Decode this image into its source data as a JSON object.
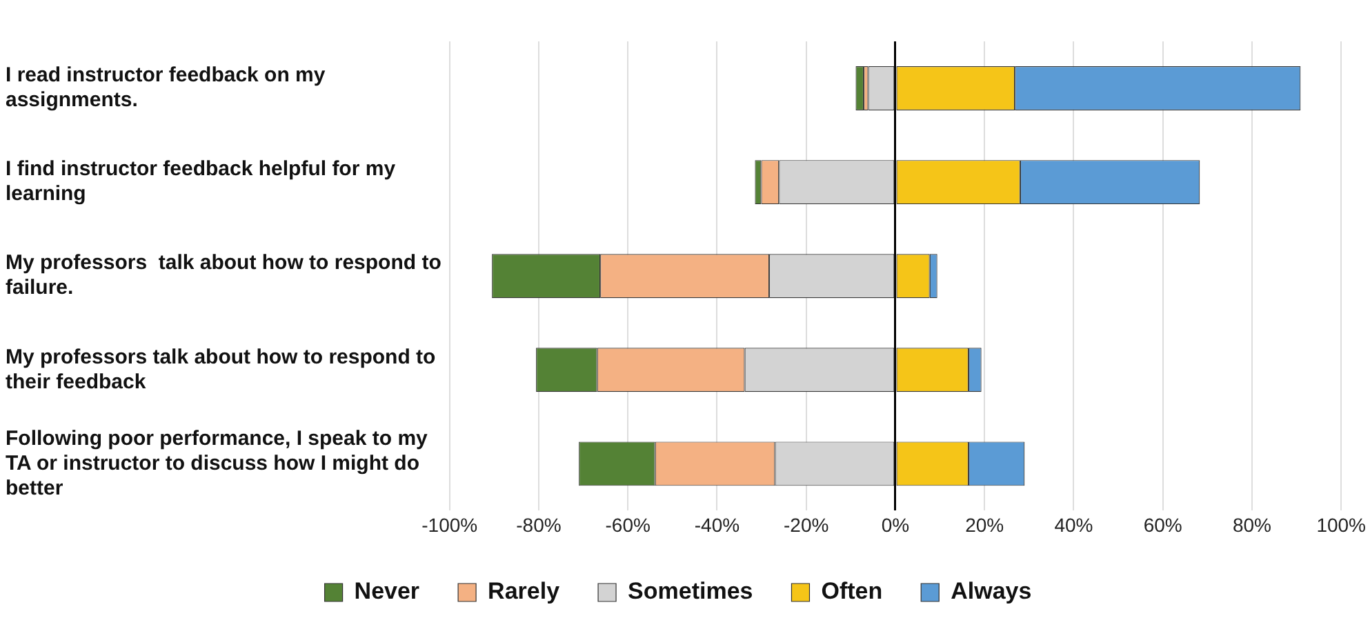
{
  "chart_data": {
    "type": "bar",
    "orientation": "horizontal",
    "stacked": true,
    "categories": [
      "I read instructor feedback on my assignments.",
      "I find instructor feedback helpful for my learning",
      "My professors  talk about how to respond to failure.",
      "My professors talk about how to respond to their feedback",
      "Following poor performance, I speak to my TA or instructor to discuss how I might do better"
    ],
    "series": [
      {
        "name": "Never",
        "color": "#548235",
        "values": [
          -1.8,
          -1.4,
          -24.3,
          -13.7,
          -17.1
        ]
      },
      {
        "name": "Rarely",
        "color": "#f4b183",
        "values": [
          -1,
          -4,
          -37.9,
          -33.1,
          -26.9
        ]
      },
      {
        "name": "Sometimes",
        "color": "#d3d3d3",
        "values": [
          -6.1,
          -26.1,
          -28.3,
          -33.8,
          -27
        ]
      },
      {
        "name": "Often",
        "color": "#f5c518",
        "values": [
          26.8,
          28,
          7.7,
          16.4,
          16.4
        ]
      },
      {
        "name": "Always",
        "color": "#5b9bd5",
        "values": [
          64.1,
          40.3,
          1.7,
          2.9,
          12.6
        ]
      }
    ],
    "xlim": [
      -100,
      100
    ],
    "xticks": [
      {
        "value": -100,
        "label": "-100%"
      },
      {
        "value": -80,
        "label": "-80%"
      },
      {
        "value": -60,
        "label": "-60%"
      },
      {
        "value": -40,
        "label": "-40%"
      },
      {
        "value": -20,
        "label": "-20%"
      },
      {
        "value": 0,
        "label": "0%"
      },
      {
        "value": 20,
        "label": "20%"
      },
      {
        "value": 40,
        "label": "40%"
      },
      {
        "value": 60,
        "label": "60%"
      },
      {
        "value": 80,
        "label": "80%"
      },
      {
        "value": 100,
        "label": "100%"
      }
    ],
    "grid": "x",
    "legend": "bottom"
  }
}
